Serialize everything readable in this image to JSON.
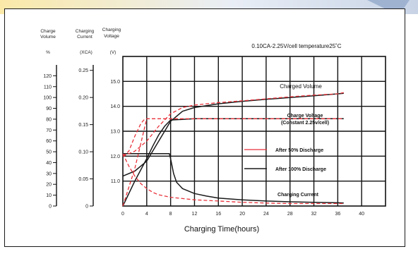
{
  "page": {
    "banner_colors": [
      "#fbe9a8",
      "#e9eef6",
      "#c8d4e6"
    ],
    "frame_color": "#1a1a1a"
  },
  "chart_data": {
    "type": "line",
    "title": "",
    "annotation": "0.10CA-2.25V/cell  temperature25˚C",
    "xlabel": "Charging Time(hours)",
    "x_ticks": [
      0,
      4,
      8,
      12,
      16,
      20,
      24,
      28,
      32,
      36,
      40
    ],
    "xlim": [
      0,
      44
    ],
    "axes": {
      "charge_volume": {
        "head_line1": "Charge",
        "head_line2": "Volume",
        "unit": "%",
        "range": [
          0,
          130
        ],
        "ticks": [
          0,
          10,
          20,
          30,
          40,
          50,
          60,
          70,
          80,
          90,
          100,
          110,
          120
        ]
      },
      "charging_current": {
        "head_line1": "Charging",
        "head_line2": "Current",
        "unit": "(XCA)",
        "range": [
          0,
          0.26
        ],
        "ticks": [
          "0",
          "0.05",
          "0.10",
          "0.15",
          "0.20",
          "0.25"
        ]
      },
      "charging_voltage": {
        "head_line1": "Charging",
        "head_line2": "Voltage",
        "unit": "(V)",
        "range": [
          10.0,
          16.0
        ],
        "ticks": [
          "11.0",
          "12.0",
          "13.0",
          "14.0",
          "15.0"
        ]
      }
    },
    "grid": true,
    "legend": [
      {
        "name": "After 50% Discharge",
        "color": "#e8323a",
        "style": "solid"
      },
      {
        "name": "After 100% Discharge",
        "color": "#1a1a1a",
        "style": "solid"
      }
    ],
    "curve_labels": {
      "charged_volume": "Charged Volume",
      "charge_voltage_line1": "Charge Voltage",
      "charge_voltage_line2": "(Constant 2.25v/cell)",
      "charging_current": "Charging Current"
    },
    "series": [
      {
        "key": "volume_100",
        "color": "#1a1a1a",
        "dash": false,
        "x": [
          0,
          2,
          4,
          6,
          8,
          10,
          12,
          16,
          20,
          24,
          28,
          32,
          36,
          37
        ],
        "y": [
          11.2,
          11.4,
          11.8,
          12.6,
          13.4,
          13.8,
          13.95,
          14.1,
          14.2,
          14.28,
          14.35,
          14.42,
          14.5,
          14.52
        ]
      },
      {
        "key": "voltage_100",
        "color": "#1a1a1a",
        "dash": false,
        "x": [
          0,
          2,
          4,
          5,
          6,
          7,
          8,
          12,
          16,
          20,
          24,
          28,
          32,
          36,
          37
        ],
        "y": [
          10.0,
          11.0,
          11.9,
          12.4,
          12.85,
          13.2,
          13.45,
          13.5,
          13.5,
          13.5,
          13.5,
          13.5,
          13.5,
          13.5,
          13.5
        ]
      },
      {
        "key": "current_100",
        "color": "#1a1a1a",
        "dash": false,
        "x": [
          0,
          7.8,
          8,
          8.5,
          9,
          10,
          12,
          14,
          16,
          20,
          24,
          28,
          32,
          36,
          37
        ],
        "y": [
          12.1,
          12.1,
          11.9,
          11.3,
          10.95,
          10.7,
          10.5,
          10.4,
          10.32,
          10.25,
          10.2,
          10.17,
          10.15,
          10.13,
          10.12
        ]
      },
      {
        "key": "voltage_50",
        "color": "#e8323a",
        "dash": true,
        "x": [
          0,
          1,
          2,
          3,
          3.5,
          4,
          6,
          8,
          12,
          16,
          20,
          24,
          28,
          32,
          36,
          37
        ],
        "y": [
          12.0,
          12.2,
          12.8,
          13.3,
          13.45,
          13.5,
          13.5,
          13.5,
          13.5,
          13.5,
          13.5,
          13.5,
          13.5,
          13.5,
          13.5,
          13.5
        ]
      },
      {
        "key": "volume_50",
        "color": "#e8323a",
        "dash": true,
        "x": [
          0,
          2,
          4,
          6,
          8,
          10,
          12,
          16,
          20,
          24,
          28,
          32,
          36,
          37
        ],
        "y": [
          12.0,
          12.2,
          12.6,
          13.2,
          13.7,
          13.95,
          14.05,
          14.15,
          14.22,
          14.3,
          14.38,
          14.45,
          14.5,
          14.55
        ]
      },
      {
        "key": "current_50",
        "color": "#e8323a",
        "dash": true,
        "x": [
          0,
          1,
          2,
          3,
          4,
          5,
          6,
          8,
          10,
          12,
          16,
          20,
          24,
          28,
          32,
          36,
          37
        ],
        "y": [
          12.1,
          11.6,
          11.2,
          10.9,
          10.7,
          10.55,
          10.45,
          10.35,
          10.3,
          10.25,
          10.2,
          10.15,
          10.12,
          10.1,
          10.1,
          10.1,
          10.1
        ]
      },
      {
        "key": "ramp_50",
        "color": "#e8323a",
        "dash": true,
        "x": [
          0,
          2,
          4
        ],
        "y": [
          10.0,
          11.5,
          13.5
        ]
      }
    ]
  }
}
